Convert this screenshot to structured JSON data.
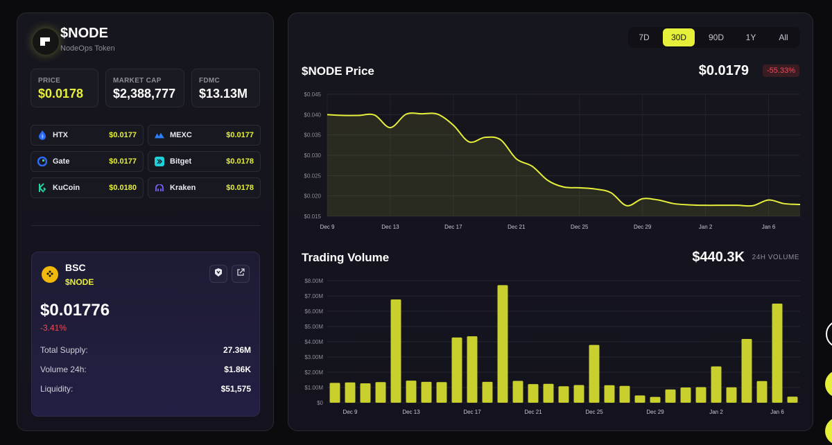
{
  "token": {
    "symbol": "$NODE",
    "name": "NodeOps Token"
  },
  "stats": [
    {
      "label": "PRICE",
      "value": "$0.0178",
      "highlight": true
    },
    {
      "label": "MARKET CAP",
      "value": "$2,388,777",
      "highlight": false
    },
    {
      "label": "FDMC",
      "value": "$13.13M",
      "highlight": false
    }
  ],
  "exchanges": [
    {
      "name": "HTX",
      "price": "$0.0177",
      "icon": "htx-icon"
    },
    {
      "name": "MEXC",
      "price": "$0.0177",
      "icon": "mexc-icon"
    },
    {
      "name": "Gate",
      "price": "$0.0177",
      "icon": "gate-icon"
    },
    {
      "name": "Bitget",
      "price": "$0.0178",
      "icon": "bitget-icon"
    },
    {
      "name": "KuCoin",
      "price": "$0.0180",
      "icon": "kucoin-icon"
    },
    {
      "name": "Kraken",
      "price": "$0.0178",
      "icon": "kraken-icon"
    }
  ],
  "bsc_card": {
    "chain": "BSC",
    "token": "$NODE",
    "price": "$0.01776",
    "change": "-3.41%",
    "rows": [
      {
        "label": "Total Supply:",
        "value": "27.36M"
      },
      {
        "label": "Volume 24h:",
        "value": "$1.86K"
      },
      {
        "label": "Liquidity:",
        "value": "$51,575"
      }
    ]
  },
  "timeframes": {
    "options": [
      "7D",
      "30D",
      "90D",
      "1Y",
      "All"
    ],
    "selected": "30D"
  },
  "price_section": {
    "title": "$NODE Price",
    "current": "$0.0179",
    "change": "-55.33%"
  },
  "volume_section": {
    "title": "Trading Volume",
    "total": "$440.3K",
    "total_label": "24H VOLUME"
  },
  "colors": {
    "accent": "#e6f03a",
    "negative": "#ef4b59",
    "background": "#0b0b0d",
    "panel": "#16161f"
  },
  "chart_data": [
    {
      "type": "area",
      "title": "$NODE Price",
      "x_ticks": [
        "Dec 9",
        "Dec 13",
        "Dec 17",
        "Dec 21",
        "Dec 25",
        "Dec 29",
        "Jan 2",
        "Jan 6"
      ],
      "y_ticks": [
        "$0.015",
        "$0.020",
        "$0.025",
        "$0.030",
        "$0.035",
        "$0.040",
        "$0.045"
      ],
      "ylim": [
        0.015,
        0.045
      ],
      "x": [
        "Dec 9",
        "Dec 10",
        "Dec 11",
        "Dec 12",
        "Dec 13",
        "Dec 14",
        "Dec 15",
        "Dec 16",
        "Dec 17",
        "Dec 18",
        "Dec 19",
        "Dec 20",
        "Dec 21",
        "Dec 22",
        "Dec 23",
        "Dec 24",
        "Dec 25",
        "Dec 26",
        "Dec 27",
        "Dec 28",
        "Dec 29",
        "Dec 30",
        "Dec 31",
        "Jan 1",
        "Jan 2",
        "Jan 3",
        "Jan 4",
        "Jan 5",
        "Jan 6",
        "Jan 7",
        "Jan 8"
      ],
      "values": [
        0.04,
        0.0398,
        0.0398,
        0.0399,
        0.0368,
        0.0401,
        0.0402,
        0.0401,
        0.0374,
        0.0333,
        0.0344,
        0.0338,
        0.0291,
        0.0273,
        0.0238,
        0.0222,
        0.022,
        0.0217,
        0.0208,
        0.0176,
        0.0193,
        0.019,
        0.0181,
        0.0178,
        0.0177,
        0.0177,
        0.0177,
        0.0176,
        0.019,
        0.0181,
        0.0179
      ],
      "grid": true
    },
    {
      "type": "bar",
      "title": "Trading Volume",
      "x_ticks": [
        "Dec 9",
        "Dec 13",
        "Dec 17",
        "Dec 21",
        "Dec 25",
        "Dec 29",
        "Jan 2",
        "Jan 6"
      ],
      "y_ticks": [
        "$0",
        "$1.00M",
        "$2.00M",
        "$3.00M",
        "$4.00M",
        "$5.00M",
        "$6.00M",
        "$7.00M",
        "$8.00M"
      ],
      "ylim": [
        0,
        8000000
      ],
      "categories": [
        "Dec 8",
        "Dec 9",
        "Dec 10",
        "Dec 11",
        "Dec 12",
        "Dec 13",
        "Dec 14",
        "Dec 15",
        "Dec 16",
        "Dec 17",
        "Dec 18",
        "Dec 19",
        "Dec 20",
        "Dec 21",
        "Dec 22",
        "Dec 23",
        "Dec 24",
        "Dec 25",
        "Dec 26",
        "Dec 27",
        "Dec 28",
        "Dec 29",
        "Dec 30",
        "Dec 31",
        "Jan 1",
        "Jan 2",
        "Jan 3",
        "Jan 4",
        "Jan 5",
        "Jan 6",
        "Jan 7"
      ],
      "values": [
        1300000,
        1330000,
        1270000,
        1350000,
        6770000,
        1450000,
        1370000,
        1350000,
        4280000,
        4360000,
        1370000,
        7710000,
        1430000,
        1220000,
        1240000,
        1080000,
        1160000,
        3790000,
        1150000,
        1100000,
        480000,
        380000,
        870000,
        1000000,
        1020000,
        2380000,
        1010000,
        4180000,
        1420000,
        6500000,
        400000
      ],
      "grid": true
    }
  ]
}
